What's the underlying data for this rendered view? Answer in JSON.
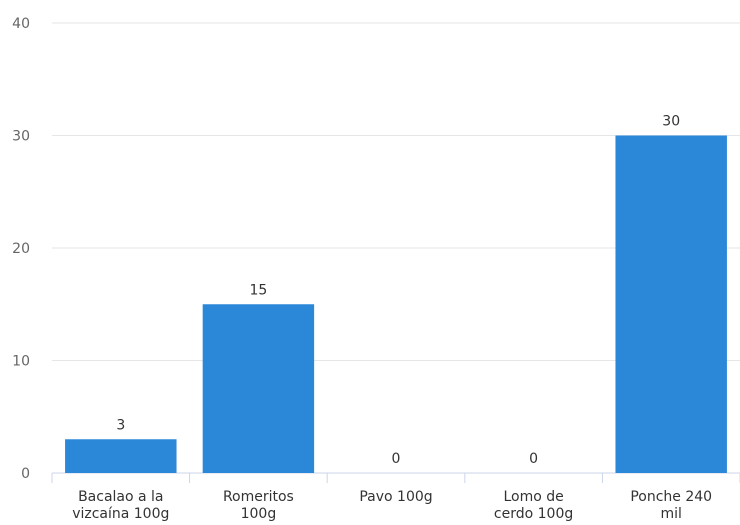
{
  "chart_data": {
    "type": "bar",
    "categories": [
      [
        "Bacalao a la",
        "vizcaína 100g"
      ],
      [
        "Romeritos",
        "100g"
      ],
      [
        "Pavo 100g"
      ],
      [
        "Lomo de",
        "cerdo 100g"
      ],
      [
        "Ponche 240",
        "mil"
      ]
    ],
    "values": [
      3,
      15,
      0,
      0,
      30
    ],
    "data_labels": [
      "3",
      "15",
      "0",
      "0",
      "30"
    ],
    "ylim": [
      0,
      40
    ],
    "yticks": [
      0,
      10,
      20,
      30,
      40
    ],
    "grid": true,
    "bar_color": "#2b88d8",
    "title": "",
    "xlabel": "",
    "ylabel": ""
  }
}
